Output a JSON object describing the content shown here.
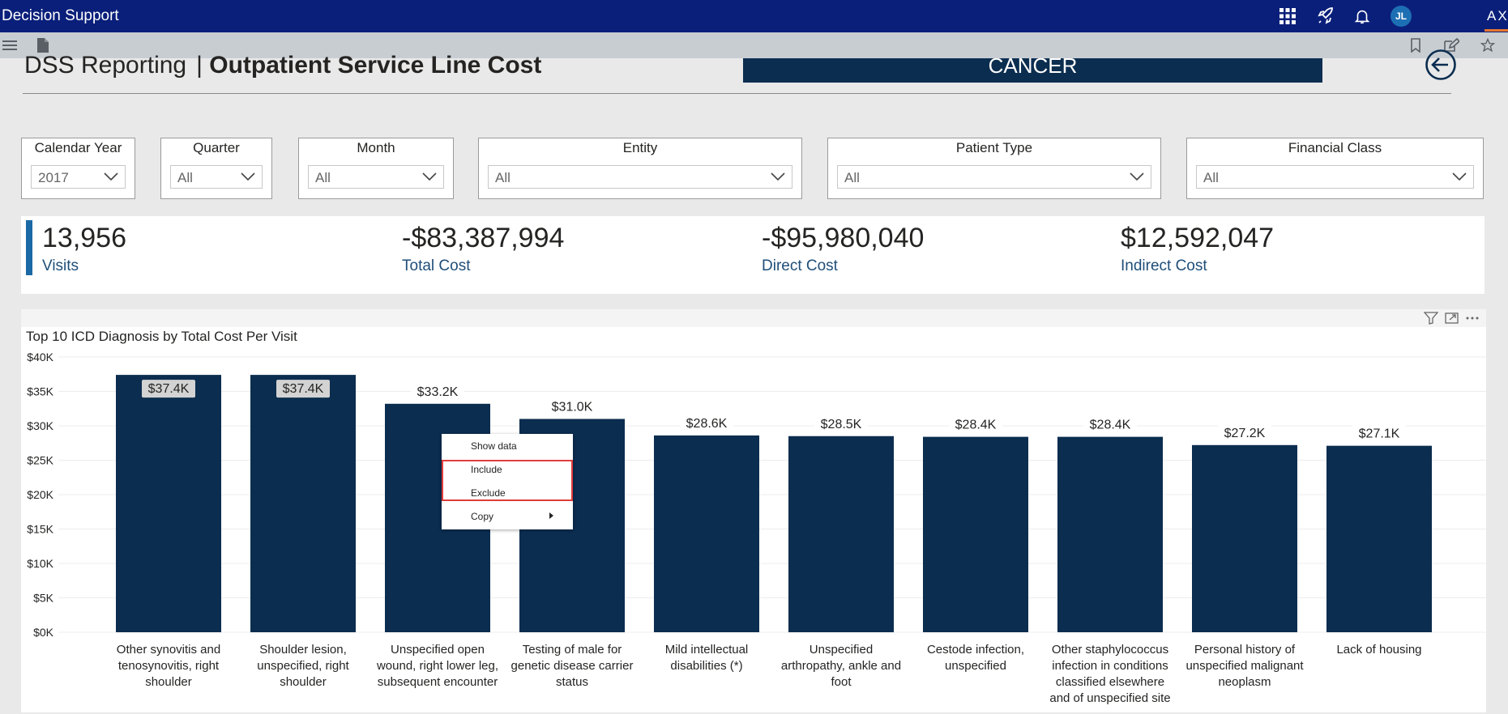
{
  "app": {
    "title": "Decision Support",
    "user_initials": "JL",
    "org_badge": "AX"
  },
  "header": {
    "title_light": "DSS Reporting",
    "separator": "|",
    "title_bold": "Outpatient Service Line Cost",
    "service_line": "CANCER"
  },
  "slicers": [
    {
      "label": "Calendar Year",
      "value": "2017"
    },
    {
      "label": "Quarter",
      "value": "All"
    },
    {
      "label": "Month",
      "value": "All"
    },
    {
      "label": "Entity",
      "value": "All"
    },
    {
      "label": "Patient Type",
      "value": "All"
    },
    {
      "label": "Financial Class",
      "value": "All"
    }
  ],
  "kpis": [
    {
      "value": "13,956",
      "label": "Visits"
    },
    {
      "value": "-$83,387,994",
      "label": "Total Cost"
    },
    {
      "value": "-$95,980,040",
      "label": "Direct Cost"
    },
    {
      "value": "$12,592,047",
      "label": "Indirect Cost"
    }
  ],
  "chart_data": {
    "type": "bar",
    "title": "Top 10 ICD Diagnosis by Total Cost Per Visit",
    "ylim": [
      0,
      40000
    ],
    "yticks": [
      "$0K",
      "$5K",
      "$10K",
      "$15K",
      "$20K",
      "$25K",
      "$30K",
      "$35K",
      "$40K"
    ],
    "categories": [
      [
        "Other synovitis and",
        "tenosynovitis, right",
        "shoulder"
      ],
      [
        "Shoulder lesion,",
        "unspecified, right",
        "shoulder"
      ],
      [
        "Unspecified open",
        "wound, right lower leg,",
        "subsequent encounter"
      ],
      [
        "Testing of male for",
        "genetic disease carrier",
        "status"
      ],
      [
        "Mild intellectual",
        "disabilities (*)"
      ],
      [
        "Unspecified",
        "arthropathy, ankle and",
        "foot"
      ],
      [
        "Cestode infection,",
        "unspecified"
      ],
      [
        "Other staphylococcus",
        "infection in conditions",
        "classified elsewhere",
        "and of unspecified site"
      ],
      [
        "Personal history of",
        "unspecified malignant",
        "neoplasm"
      ],
      [
        "Lack of housing"
      ]
    ],
    "values": [
      37400,
      37400,
      33200,
      31000,
      28600,
      28500,
      28400,
      28400,
      27200,
      27100
    ],
    "data_labels": [
      "$37.4K",
      "$37.4K",
      "$33.2K",
      "$31.0K",
      "$28.6K",
      "$28.5K",
      "$28.4K",
      "$28.4K",
      "$27.2K",
      "$27.1K"
    ],
    "highlighted_labels": [
      0,
      1
    ],
    "bar_color": "#0b2d4f",
    "grid": true
  },
  "context_menu": {
    "items": [
      {
        "label": "Show data"
      },
      {
        "label": "Include"
      },
      {
        "label": "Exclude"
      },
      {
        "label": "Copy"
      }
    ]
  }
}
